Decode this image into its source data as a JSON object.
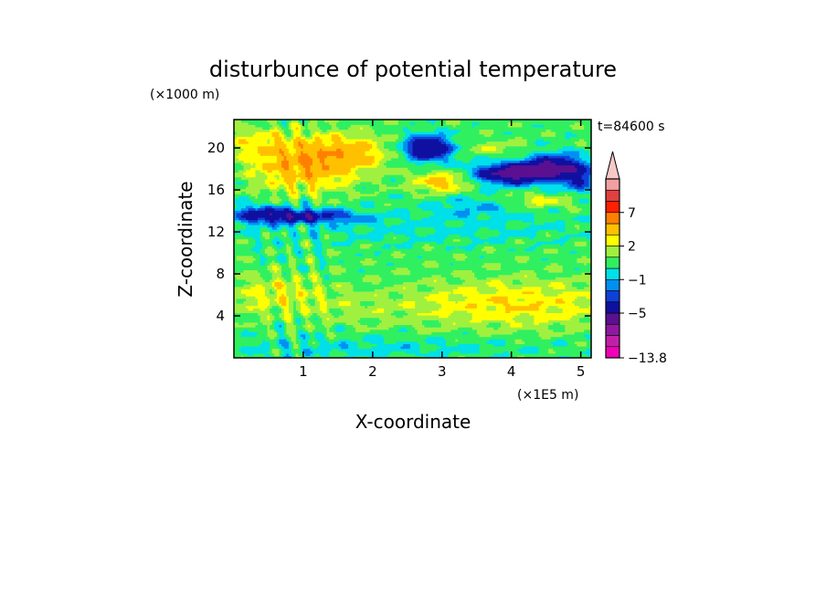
{
  "chart_data": {
    "type": "heatmap",
    "title": "disturbunce of potential temperature",
    "time_label": "t=84600 s",
    "xlabel": "X-coordinate",
    "x_unit": "(×1E5 m)",
    "ylabel": "Z-coordinate",
    "y_unit": "(×1000 m)",
    "xlim": [
      0,
      5.15
    ],
    "ylim": [
      0,
      22.7
    ],
    "x_ticks": [
      1,
      2,
      3,
      4,
      5
    ],
    "y_ticks": [
      4,
      8,
      12,
      16,
      20
    ],
    "colorbar": {
      "levels": [
        -13.8,
        -11,
        -9,
        -7,
        -5,
        -3,
        -2,
        -1,
        0,
        1,
        2,
        3,
        5,
        7,
        9,
        12
      ],
      "colors": [
        "#f000b8",
        "#c020a8",
        "#9018a0",
        "#5a1090",
        "#1010a0",
        "#1040d8",
        "#0090f0",
        "#00e0e8",
        "#30f060",
        "#a0f040",
        "#ffff00",
        "#ffc000",
        "#ff8000",
        "#ff2000",
        "#e04040",
        "#f0a0a0",
        "#f8c8c8"
      ],
      "tick_labels": [
        "7",
        "2",
        "−1",
        "−5",
        "−13.8"
      ],
      "tick_values": [
        7,
        2,
        -1,
        -5,
        -13.8
      ],
      "extend": "max"
    }
  }
}
